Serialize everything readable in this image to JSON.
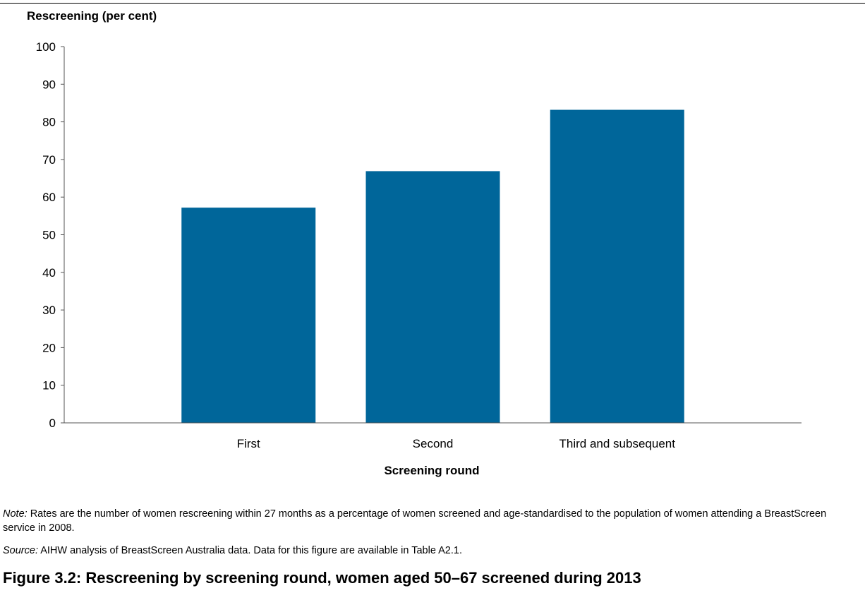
{
  "chart_data": {
    "type": "bar",
    "categories": [
      "First",
      "Second",
      "Third and subsequent"
    ],
    "values": [
      57.2,
      66.9,
      83.2
    ],
    "xlabel": "Screening round",
    "ylabel": "Rescreening (per cent)",
    "ylim": [
      0,
      100
    ],
    "yticks": [
      0,
      10,
      20,
      30,
      40,
      50,
      60,
      70,
      80,
      90,
      100
    ],
    "grid": false,
    "bar_color": "#00669a"
  },
  "note": {
    "label": "Note:",
    "text": " Rates are the number of women rescreening within 27 months as a percentage of women screened and age-standardised to the population of women attending a BreastScreen service in 2008."
  },
  "source": {
    "label": "Source:",
    "text": " AIHW analysis of BreastScreen Australia data. Data for this figure are available in Table A2.1."
  },
  "caption": "Figure 3.2: Rescreening by screening round, women aged 50–67 screened during 2013"
}
